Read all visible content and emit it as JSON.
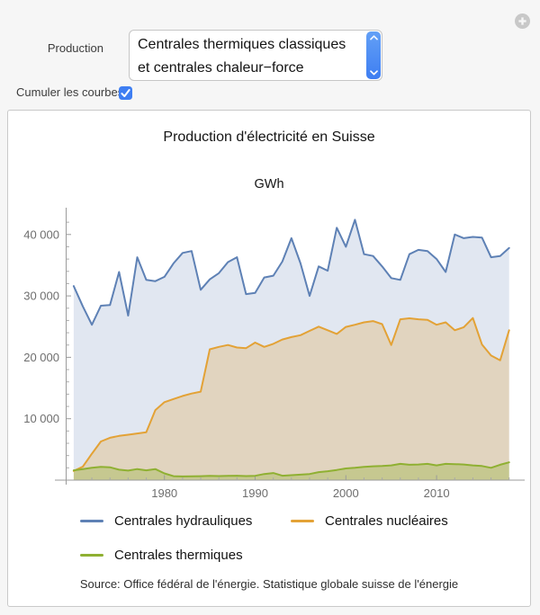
{
  "controls": {
    "production_label": "Production",
    "production_lines": [
      "Centrales thermiques classiques",
      "et centrales chaleur−force"
    ],
    "cumulate_label": "Cumuler les courbes",
    "cumulate_checked": true
  },
  "colors": {
    "accent_blue": "#3e7ef2",
    "panel_border": "#c9c9c9",
    "axis": "#9b9b9b",
    "tick_label": "#6e6e6e"
  },
  "chart_data": {
    "type": "area",
    "title": "Production d'électricité en Suisse",
    "ylabel": "GWh",
    "xlabel": "",
    "source": "Source: Office fédéral de l'énergie. Statistique globale suisse de l'énergie",
    "grid": false,
    "legend_position": "below",
    "xlim": [
      1968.8,
      2019.7
    ],
    "ylim": [
      0,
      44000
    ],
    "xticks": [
      {
        "v": 1980,
        "label": "1980"
      },
      {
        "v": 1990,
        "label": "1990"
      },
      {
        "v": 2000,
        "label": "2000"
      },
      {
        "v": 2010,
        "label": "2010"
      }
    ],
    "minor_xtick_step": 2,
    "yticks": [
      {
        "v": 10000,
        "label": "10 000"
      },
      {
        "v": 20000,
        "label": "20 000"
      },
      {
        "v": 30000,
        "label": "30 000"
      },
      {
        "v": 40000,
        "label": "40 000"
      }
    ],
    "minor_ytick_step": 2000,
    "x": [
      1970,
      1971,
      1972,
      1973,
      1974,
      1975,
      1976,
      1977,
      1978,
      1979,
      1980,
      1981,
      1982,
      1983,
      1984,
      1985,
      1986,
      1987,
      1988,
      1989,
      1990,
      1991,
      1992,
      1993,
      1994,
      1995,
      1996,
      1997,
      1998,
      1999,
      2000,
      2001,
      2002,
      2003,
      2004,
      2005,
      2006,
      2007,
      2008,
      2009,
      2010,
      2011,
      2012,
      2013,
      2014,
      2015,
      2016,
      2017,
      2018
    ],
    "series": [
      {
        "id": "hydrauliques",
        "name": "Centrales hydrauliques",
        "color": "#5e81b5",
        "fill_opacity": 0.19,
        "values": [
          31600,
          28300,
          25300,
          28400,
          28500,
          33900,
          26800,
          36300,
          32600,
          32400,
          33100,
          35300,
          37000,
          37300,
          31000,
          32700,
          33700,
          35500,
          36300,
          30300,
          30500,
          33000,
          33300,
          35600,
          39400,
          35300,
          30000,
          34800,
          34100,
          41100,
          38000,
          42400,
          36800,
          36500,
          34800,
          32900,
          32600,
          36800,
          37500,
          37300,
          36000,
          33900,
          40000,
          39400,
          39600,
          39500,
          36300,
          36500,
          37800
        ]
      },
      {
        "id": "nucleaires",
        "name": "Centrales nucléaires",
        "color": "#e3a236",
        "fill_opacity": 0.27,
        "values": [
          1500,
          2200,
          4300,
          6300,
          6900,
          7200,
          7400,
          7600,
          7800,
          11400,
          12700,
          13200,
          13700,
          14100,
          14400,
          21300,
          21700,
          22000,
          21600,
          21500,
          22400,
          21700,
          22200,
          22900,
          23300,
          23600,
          24300,
          25000,
          24400,
          23800,
          24950,
          25300,
          25700,
          25900,
          25400,
          22000,
          26200,
          26350,
          26200,
          26100,
          25300,
          25700,
          24400,
          24900,
          26400,
          22100,
          20300,
          19500,
          24400
        ]
      },
      {
        "id": "thermiques",
        "name": "Centrales thermiques",
        "color": "#8fb032",
        "fill_opacity": 0.33,
        "values": [
          1600,
          1800,
          2000,
          2150,
          2100,
          1700,
          1550,
          1800,
          1600,
          1800,
          1100,
          650,
          600,
          620,
          650,
          700,
          660,
          700,
          720,
          660,
          700,
          1000,
          1150,
          720,
          800,
          900,
          1000,
          1300,
          1450,
          1650,
          1900,
          2000,
          2150,
          2250,
          2300,
          2400,
          2650,
          2500,
          2550,
          2650,
          2400,
          2650,
          2600,
          2550,
          2400,
          2300,
          2000,
          2500,
          2900
        ]
      }
    ]
  }
}
